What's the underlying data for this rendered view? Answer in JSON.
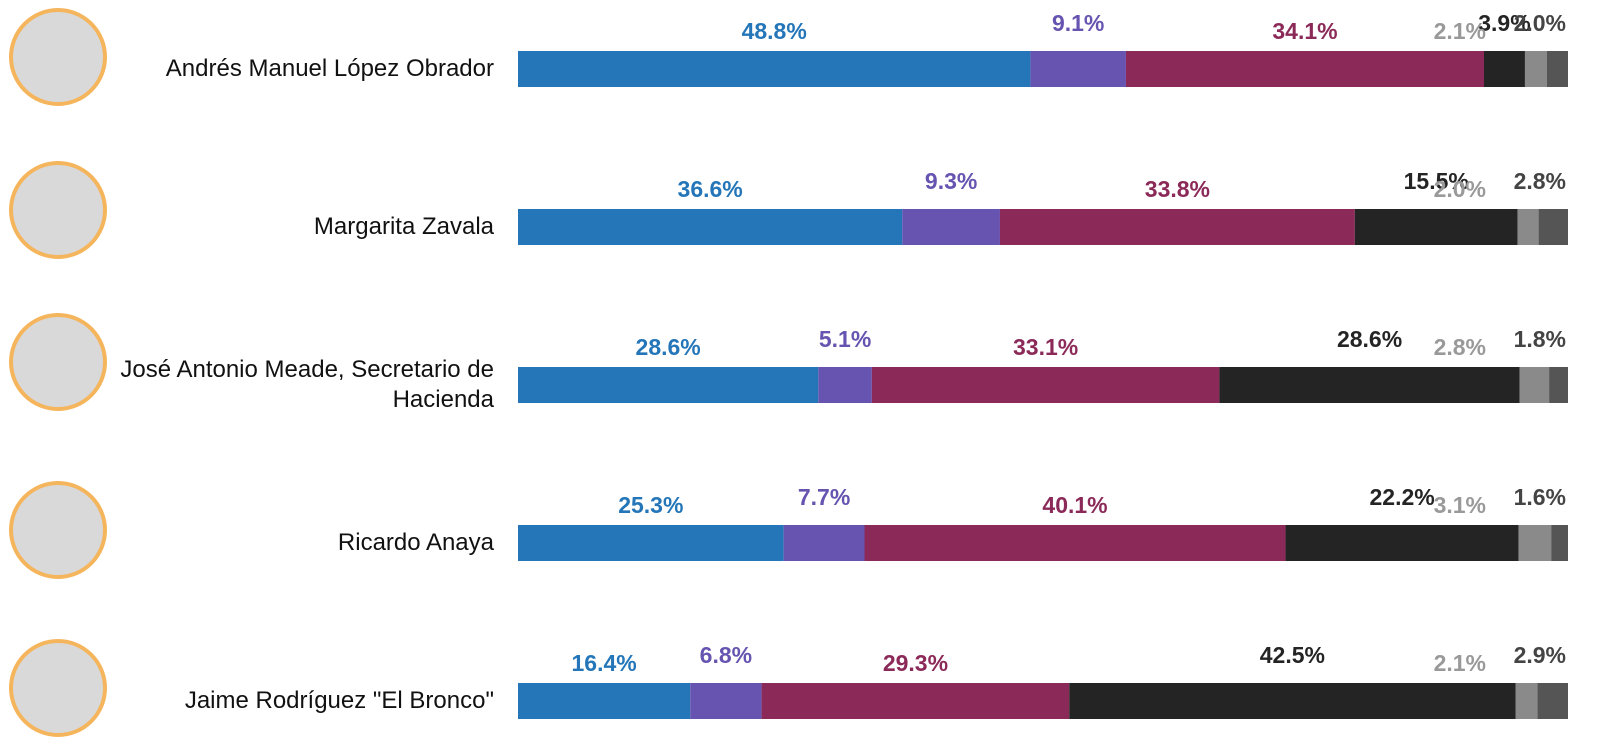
{
  "chart_data": {
    "type": "stacked-bar",
    "categories": [
      "Andrés Manuel López Obrador",
      "Margarita Zavala",
      "José Antonio Meade, Secretario de Hacienda",
      "Ricardo Anaya",
      "Jaime Rodríguez \"El Bronco\""
    ],
    "series": [
      {
        "color": "#2476b8",
        "values": [
          48.8,
          36.6,
          28.6,
          25.3,
          16.4
        ],
        "value_labels": [
          "48.8%",
          "36.6%",
          "28.6%",
          "25.3%",
          "16.4%"
        ]
      },
      {
        "color": "#6754b0",
        "values": [
          9.1,
          9.3,
          5.1,
          7.7,
          6.8
        ],
        "value_labels": [
          "9.1%",
          "9.3%",
          "5.1%",
          "7.7%",
          "6.8%"
        ]
      },
      {
        "color": "#8b2a58",
        "values": [
          34.1,
          33.8,
          33.1,
          40.1,
          29.3
        ],
        "value_labels": [
          "34.1%",
          "33.8%",
          "33.1%",
          "40.1%",
          "29.3%"
        ]
      },
      {
        "color": "#242424",
        "values": [
          3.9,
          15.5,
          28.6,
          22.2,
          42.5
        ],
        "value_labels": [
          "3.9%",
          "15.5%",
          "28.6%",
          "22.2%",
          "42.5%"
        ]
      },
      {
        "color": "#8a8a8a",
        "values": [
          2.1,
          2.0,
          2.8,
          3.1,
          2.1
        ],
        "value_labels": [
          "2.1%",
          "2.0%",
          "2.8%",
          "3.1%",
          "2.1%"
        ]
      },
      {
        "color": "#555555",
        "values": [
          2.0,
          2.8,
          1.8,
          1.6,
          2.9
        ],
        "value_labels": [
          "2.0%",
          "2.8%",
          "1.8%",
          "1.6%",
          "2.9%"
        ]
      }
    ]
  }
}
